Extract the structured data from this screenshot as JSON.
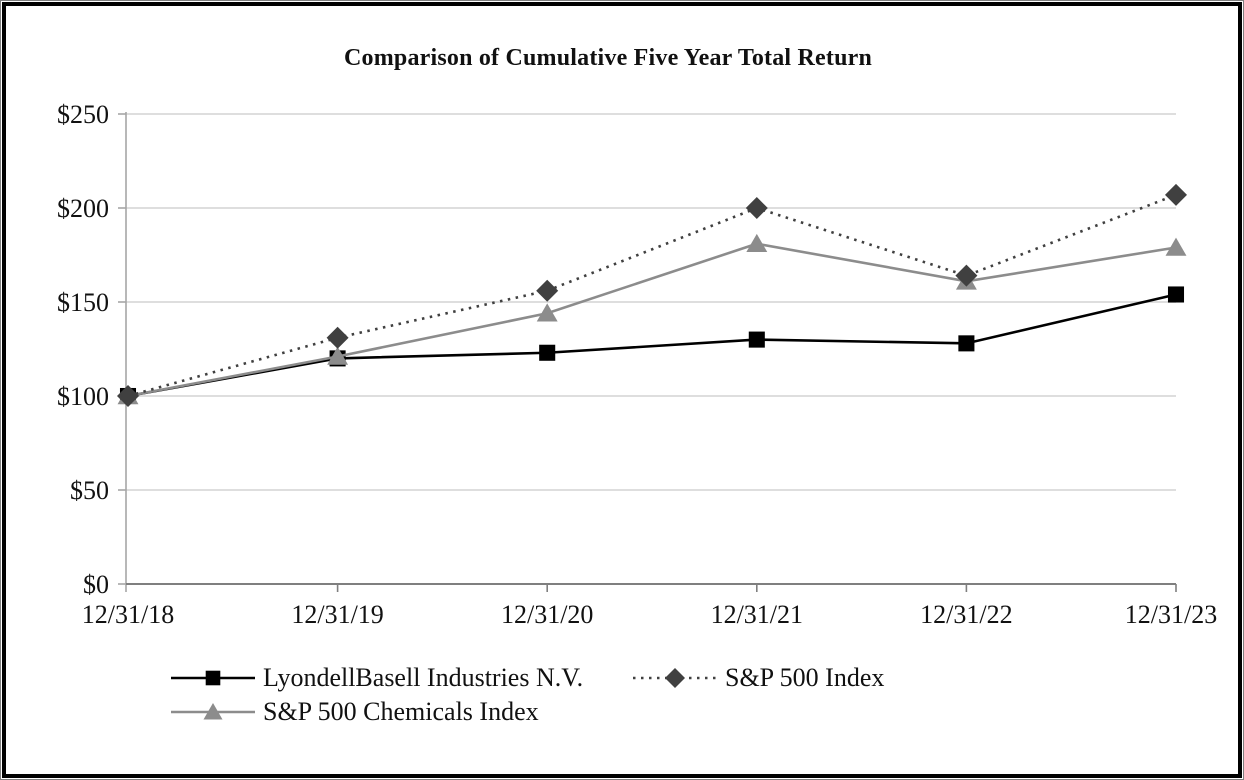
{
  "chart_data": {
    "type": "line",
    "title": "Comparison of Cumulative Five Year Total Return",
    "categories": [
      "12/31/18",
      "12/31/19",
      "12/31/20",
      "12/31/21",
      "12/31/22",
      "12/31/23"
    ],
    "series": [
      {
        "name": "LyondellBasell Industries N.V.",
        "values": [
          100,
          120,
          123,
          130,
          128,
          154
        ],
        "color": "#000000",
        "marker": "square",
        "line_style": "solid"
      },
      {
        "name": "S&P 500 Index",
        "values": [
          100,
          131,
          156,
          200,
          164,
          207
        ],
        "color": "#404040",
        "marker": "diamond",
        "line_style": "dotted"
      },
      {
        "name": "S&P 500 Chemicals Index",
        "values": [
          100,
          121,
          144,
          181,
          161,
          179
        ],
        "color": "#8C8C8C",
        "marker": "triangle",
        "line_style": "solid"
      }
    ],
    "xlabel": "",
    "ylabel": "",
    "ylim": [
      0,
      250
    ],
    "ytick_step": 50,
    "ytick_labels": [
      "$0",
      "$50",
      "$100",
      "$150",
      "$200",
      "$250"
    ],
    "grid": true,
    "legend_position": "bottom",
    "legend_rows": [
      [
        0,
        1
      ],
      [
        2
      ]
    ],
    "colors": {
      "gridline": "#D9D9D9",
      "x_axis": "#7F7F7F",
      "y_axis": "#A6A6A6",
      "tick_label": "#111111"
    }
  }
}
